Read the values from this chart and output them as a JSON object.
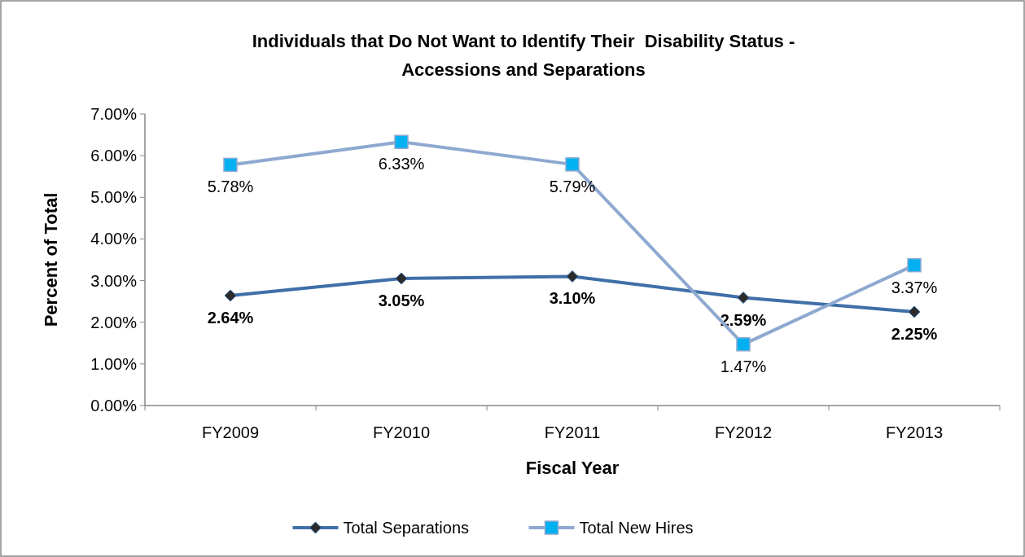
{
  "chart_data": {
    "type": "line",
    "title": "Individuals that Do Not Want to Identify Their  Disability Status - Accessions and Separations",
    "xlabel": "Fiscal Year",
    "ylabel": "Percent of Total",
    "categories": [
      "FY2009",
      "FY2010",
      "FY2011",
      "FY2012",
      "FY2013"
    ],
    "series": [
      {
        "name": "Total Separations",
        "color": "#3f6fa8",
        "marker": "diamond",
        "values": [
          2.64,
          3.05,
          3.1,
          2.59,
          2.25
        ],
        "value_labels": [
          "2.64%",
          "3.05%",
          "3.10%",
          "2.59%",
          "2.25%"
        ]
      },
      {
        "name": "Total New Hires",
        "color": "#8ea9d0",
        "marker": "square",
        "values": [
          5.78,
          6.33,
          5.79,
          1.47,
          3.37
        ],
        "value_labels": [
          "5.78%",
          "6.33%",
          "5.79%",
          "1.47%",
          "3.37%"
        ]
      }
    ],
    "ylim": [
      0,
      7
    ],
    "yticks": [
      {
        "value": 0,
        "label": "0.00%"
      },
      {
        "value": 1,
        "label": "1.00%"
      },
      {
        "value": 2,
        "label": "2.00%"
      },
      {
        "value": 3,
        "label": "3.00%"
      },
      {
        "value": 4,
        "label": "4.00%"
      },
      {
        "value": 5,
        "label": "5.00%"
      },
      {
        "value": 6,
        "label": "6.00%"
      },
      {
        "value": 7,
        "label": "7.00%"
      }
    ],
    "grid": false,
    "legend": "bottom"
  }
}
